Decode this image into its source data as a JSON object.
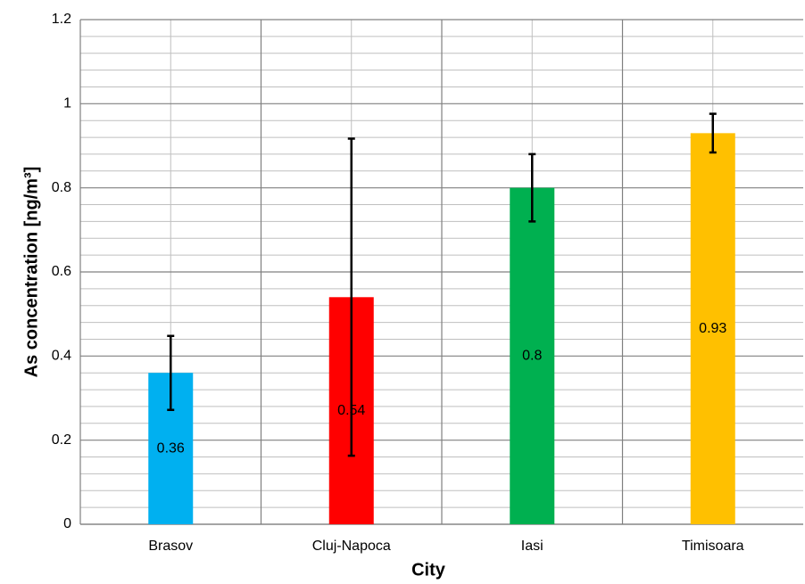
{
  "chart_data": {
    "type": "bar",
    "x_label": "City",
    "y_label": "As concentration [ng/m³]",
    "categories": [
      "Brasov",
      "Cluj-Napoca",
      "Iasi",
      "Timisoara"
    ],
    "values": [
      0.36,
      0.54,
      0.8,
      0.93
    ],
    "errors": [
      0.088,
      0.377,
      0.08,
      0.046
    ],
    "colors": [
      "#00b0f0",
      "#ff0000",
      "#00b050",
      "#ffc000"
    ],
    "ylim": [
      0,
      1.2
    ],
    "yticks": [
      0,
      0.2,
      0.4,
      0.6,
      0.8,
      1,
      1.2
    ],
    "minor_yticks": [
      0.04,
      0.08,
      0.12,
      0.16,
      0.24,
      0.28,
      0.32,
      0.36,
      0.44,
      0.48,
      0.52,
      0.56,
      0.64,
      0.68,
      0.72,
      0.76,
      0.84,
      0.88,
      0.92,
      0.96,
      1.04,
      1.08,
      1.12,
      1.16
    ],
    "grid": true
  }
}
